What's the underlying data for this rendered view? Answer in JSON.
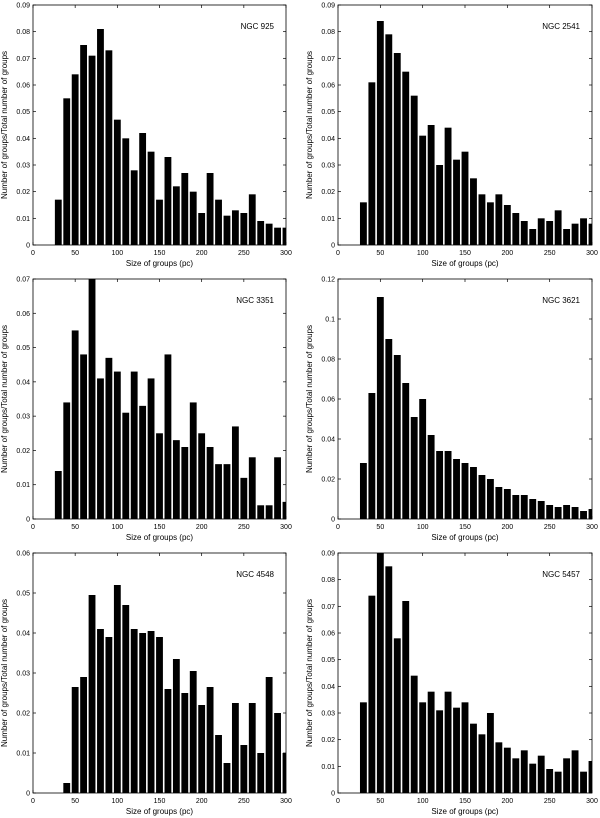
{
  "figure": {
    "bar_color": "#000000",
    "background": "#ffffff"
  },
  "chart_data": [
    {
      "type": "bar",
      "title": "NGC 925",
      "xlabel": "Size of groups (pc)",
      "ylabel": "Number of groups/Total number of groups",
      "xlim": [
        0,
        300
      ],
      "ylim": [
        0,
        0.09
      ],
      "xticks": [
        "0",
        "50",
        "100",
        "150",
        "200",
        "250",
        "300"
      ],
      "yticks": [
        "0",
        "0.01",
        "0.02",
        "0.03",
        "0.04",
        "0.05",
        "0.06",
        "0.07",
        "0.08",
        "0.09"
      ],
      "bar_width": 10,
      "x": [
        30,
        40,
        50,
        60,
        70,
        80,
        90,
        100,
        110,
        120,
        130,
        140,
        150,
        160,
        170,
        180,
        190,
        200,
        210,
        220,
        230,
        240,
        250,
        260,
        270,
        280,
        290,
        300
      ],
      "values": [
        0.017,
        0.055,
        0.064,
        0.075,
        0.071,
        0.081,
        0.073,
        0.047,
        0.04,
        0.028,
        0.042,
        0.035,
        0.017,
        0.033,
        0.022,
        0.027,
        0.02,
        0.012,
        0.027,
        0.017,
        0.011,
        0.013,
        0.012,
        0.019,
        0.009,
        0.008,
        0.0065,
        0.0065
      ]
    },
    {
      "type": "bar",
      "title": "NGC 2541",
      "xlabel": "Size of groups (pc)",
      "ylabel": "Number of groups/Total number of groups",
      "xlim": [
        0,
        300
      ],
      "ylim": [
        0,
        0.09
      ],
      "xticks": [
        "0",
        "50",
        "100",
        "150",
        "200",
        "250",
        "300"
      ],
      "yticks": [
        "0",
        "0.01",
        "0.02",
        "0.03",
        "0.04",
        "0.05",
        "0.06",
        "0.07",
        "0.08",
        "0.09"
      ],
      "bar_width": 10,
      "x": [
        30,
        40,
        50,
        60,
        70,
        80,
        90,
        100,
        110,
        120,
        130,
        140,
        150,
        160,
        170,
        180,
        190,
        200,
        210,
        220,
        230,
        240,
        250,
        260,
        270,
        280,
        290,
        300
      ],
      "values": [
        0.016,
        0.061,
        0.084,
        0.079,
        0.072,
        0.065,
        0.056,
        0.041,
        0.045,
        0.03,
        0.044,
        0.032,
        0.035,
        0.025,
        0.019,
        0.016,
        0.019,
        0.015,
        0.012,
        0.009,
        0.006,
        0.01,
        0.009,
        0.013,
        0.006,
        0.008,
        0.01,
        0.008
      ]
    },
    {
      "type": "bar",
      "title": "NGC 3351",
      "xlabel": "Size of groups (pc)",
      "ylabel": "Number of groups/Total number of groups",
      "xlim": [
        0,
        300
      ],
      "ylim": [
        0,
        0.07
      ],
      "xticks": [
        "0",
        "50",
        "100",
        "150",
        "200",
        "250",
        "300"
      ],
      "yticks": [
        "0",
        "0.01",
        "0.02",
        "0.03",
        "0.04",
        "0.05",
        "0.06",
        "0.07"
      ],
      "bar_width": 10,
      "x": [
        30,
        40,
        50,
        60,
        70,
        80,
        90,
        100,
        110,
        120,
        130,
        140,
        150,
        160,
        170,
        180,
        190,
        200,
        210,
        220,
        230,
        240,
        250,
        260,
        270,
        280,
        290,
        300
      ],
      "values": [
        0.014,
        0.034,
        0.055,
        0.048,
        0.07,
        0.041,
        0.047,
        0.043,
        0.031,
        0.043,
        0.033,
        0.041,
        0.025,
        0.048,
        0.023,
        0.021,
        0.034,
        0.025,
        0.021,
        0.016,
        0.016,
        0.027,
        0.012,
        0.018,
        0.004,
        0.004,
        0.018,
        0.005
      ]
    },
    {
      "type": "bar",
      "title": "NGC 3621",
      "xlabel": "Size of groups (pc)",
      "ylabel": "Number of groups/Total number of groups",
      "xlim": [
        0,
        300
      ],
      "ylim": [
        0,
        0.12
      ],
      "xticks": [
        "0",
        "50",
        "100",
        "150",
        "200",
        "250",
        "300"
      ],
      "yticks": [
        "0",
        "0.02",
        "0.04",
        "0.06",
        "0.08",
        "0.1",
        "0.12"
      ],
      "bar_width": 10,
      "x": [
        30,
        40,
        50,
        60,
        70,
        80,
        90,
        100,
        110,
        120,
        130,
        140,
        150,
        160,
        170,
        180,
        190,
        200,
        210,
        220,
        230,
        240,
        250,
        260,
        270,
        280,
        290,
        300
      ],
      "values": [
        0.028,
        0.063,
        0.111,
        0.09,
        0.082,
        0.068,
        0.051,
        0.06,
        0.042,
        0.034,
        0.034,
        0.03,
        0.028,
        0.026,
        0.022,
        0.02,
        0.016,
        0.015,
        0.012,
        0.012,
        0.01,
        0.009,
        0.007,
        0.006,
        0.007,
        0.006,
        0.004,
        0.005
      ]
    },
    {
      "type": "bar",
      "title": "NGC 4548",
      "xlabel": "Size of groups (pc)",
      "ylabel": "Number of groups/Total number of groups",
      "xlim": [
        0,
        300
      ],
      "ylim": [
        0,
        0.06
      ],
      "xticks": [
        "0",
        "50",
        "100",
        "150",
        "200",
        "250",
        "300"
      ],
      "yticks": [
        "0",
        "0.01",
        "0.02",
        "0.03",
        "0.04",
        "0.05",
        "0.06"
      ],
      "bar_width": 10,
      "x": [
        40,
        50,
        60,
        70,
        80,
        90,
        100,
        110,
        120,
        130,
        140,
        150,
        160,
        170,
        180,
        190,
        200,
        210,
        220,
        230,
        240,
        250,
        260,
        270,
        280,
        290,
        300
      ],
      "values": [
        0.0025,
        0.0265,
        0.029,
        0.0495,
        0.041,
        0.039,
        0.052,
        0.047,
        0.041,
        0.04,
        0.0405,
        0.039,
        0.026,
        0.0335,
        0.025,
        0.0305,
        0.022,
        0.0265,
        0.0145,
        0.0075,
        0.0225,
        0.012,
        0.0225,
        0.01,
        0.029,
        0.02,
        0.01
      ]
    },
    {
      "type": "bar",
      "title": "NGC 5457",
      "xlabel": "Size of groups (pc)",
      "ylabel": "Number of groups/Total number of groups",
      "xlim": [
        0,
        300
      ],
      "ylim": [
        0,
        0.09
      ],
      "xticks": [
        "0",
        "50",
        "100",
        "150",
        "200",
        "250",
        "300"
      ],
      "yticks": [
        "0",
        "0.01",
        "0.02",
        "0.03",
        "0.04",
        "0.05",
        "0.06",
        "0.07",
        "0.08",
        "0.09"
      ],
      "bar_width": 10,
      "x": [
        30,
        40,
        50,
        60,
        70,
        80,
        90,
        100,
        110,
        120,
        130,
        140,
        150,
        160,
        170,
        180,
        190,
        200,
        210,
        220,
        230,
        240,
        250,
        260,
        270,
        280,
        290,
        300
      ],
      "values": [
        0.034,
        0.074,
        0.09,
        0.085,
        0.058,
        0.072,
        0.044,
        0.034,
        0.038,
        0.031,
        0.038,
        0.032,
        0.034,
        0.026,
        0.022,
        0.03,
        0.019,
        0.017,
        0.013,
        0.016,
        0.011,
        0.014,
        0.009,
        0.008,
        0.013,
        0.016,
        0.008,
        0.012
      ]
    }
  ]
}
